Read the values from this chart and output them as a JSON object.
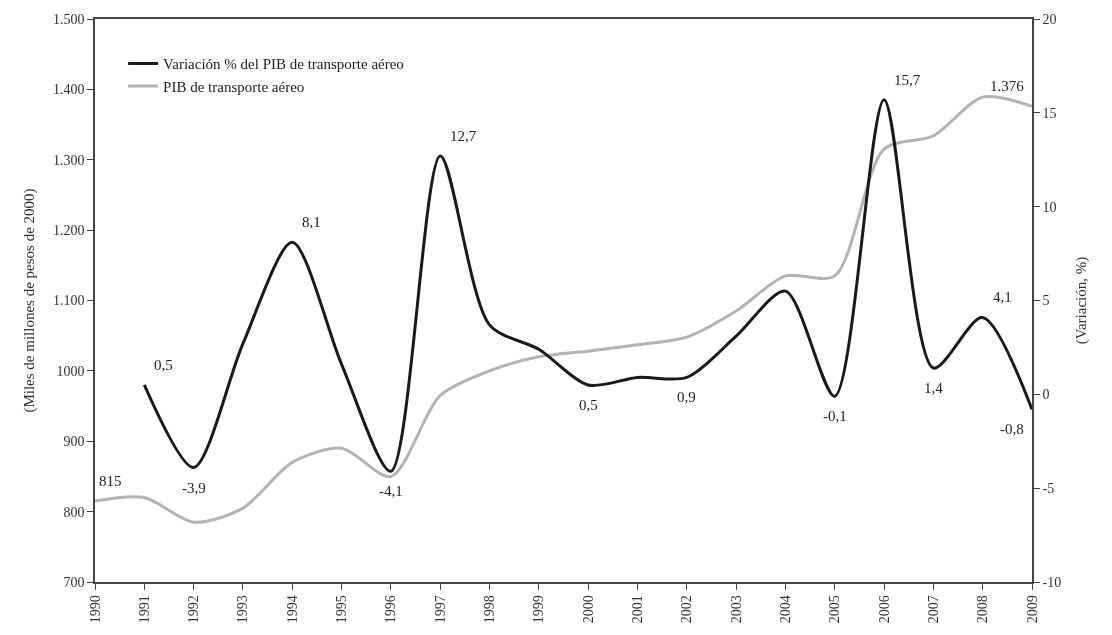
{
  "chart_data": {
    "type": "line",
    "ylabel": "(Miles de millones de pesos de 2000)",
    "y2label": "(Variación, %)",
    "x": [
      1990,
      1991,
      1992,
      1993,
      1994,
      1995,
      1996,
      1997,
      1998,
      1999,
      2000,
      2001,
      2002,
      2003,
      2004,
      2005,
      2006,
      2007,
      2008,
      2009
    ],
    "series": [
      {
        "name": "Variación % del PIB de transporte aéreo",
        "color": "#1a1a1a",
        "axis": "y2",
        "values": [
          null,
          0.5,
          -3.9,
          2.7,
          8.1,
          1.6,
          -4.1,
          12.7,
          3.7,
          2.4,
          0.5,
          0.9,
          0.9,
          3.1,
          5.5,
          -0.1,
          15.7,
          1.4,
          4.1,
          -0.8
        ],
        "value_labels": [
          null,
          "0,5",
          "-3,9",
          null,
          "8,1",
          null,
          "-4,1",
          "12,7",
          null,
          null,
          "0,5",
          null,
          "0,9",
          null,
          null,
          "-0,1",
          "15,7",
          "1,4",
          "4,1",
          "-0,8"
        ]
      },
      {
        "name": "PIB de transporte aéreo",
        "color": "#b3b3b3",
        "values": [
          815,
          820,
          785,
          805,
          870,
          890,
          850,
          965,
          1000,
          1020,
          1028,
          1037,
          1048,
          1085,
          1135,
          1135,
          1315,
          1334,
          1389,
          1376
        ],
        "value_labels": [
          "815",
          null,
          null,
          null,
          null,
          null,
          null,
          null,
          null,
          null,
          null,
          null,
          null,
          null,
          null,
          null,
          null,
          null,
          null,
          "1.376"
        ]
      }
    ],
    "xlim": [
      1990,
      2009
    ],
    "xticks": [
      1990,
      1991,
      1992,
      1993,
      1994,
      1995,
      1996,
      1997,
      1998,
      1999,
      2000,
      2001,
      2002,
      2003,
      2004,
      2005,
      2006,
      2007,
      2008,
      2009
    ],
    "ylim": [
      700,
      1500
    ],
    "yticks": [
      700,
      800,
      900,
      1000,
      {
        "value": 1100,
        "label": "1.100"
      },
      {
        "value": 1200,
        "label": "1.200"
      },
      {
        "value": 1300,
        "label": "1.300"
      },
      {
        "value": 1400,
        "label": "1.400"
      },
      {
        "value": 1500,
        "label": "1.500"
      }
    ],
    "y2lim": [
      -10,
      20
    ],
    "y2ticks": [
      -10,
      -5,
      0,
      5,
      10,
      15,
      20
    ],
    "legend": "top left",
    "marker": "none",
    "line_style": "solid"
  }
}
